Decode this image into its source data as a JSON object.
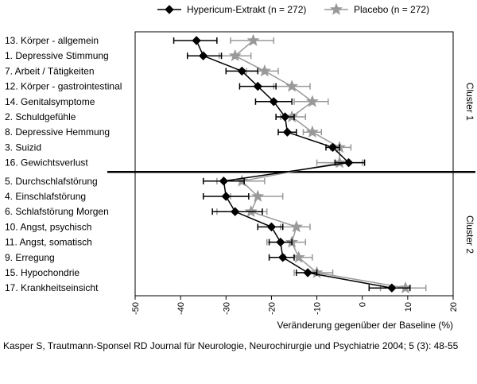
{
  "chart_data": {
    "type": "line",
    "orientation": "horizontal",
    "xlabel": "Veränderung gegenüber der Baseline (%)",
    "xlim": [
      -50,
      20
    ],
    "xticks": [
      -50,
      -40,
      -30,
      -20,
      -10,
      0,
      10,
      20
    ],
    "categories": [
      "13. Körper - allgemein",
      "1. Depressive Stimmung",
      "7. Arbeit / Tätigkeiten",
      "12. Körper - gastrointestinal",
      "14. Genitalsymptome",
      "2. Schuldgefühle",
      "8. Depressive Hemmung",
      "3. Suizid",
      "16. Gewichtsverlust",
      "5. Durchschlafstörung",
      "4. Einschlafstörung",
      "6. Schlafstörung Morgen",
      "10. Angst, psychisch",
      "11. Angst, somatisch",
      "9. Erregung",
      "15. Hypochondrie",
      "17. Krankheitseinsicht"
    ],
    "series": [
      {
        "name": "Hypericum-Extrakt (n = 272)",
        "color": "#000000",
        "marker": "diamond",
        "values": [
          -36.5,
          -35,
          -26.5,
          -23,
          -19.5,
          -17,
          -16.5,
          -6.5,
          -3,
          -30.5,
          -30,
          -28,
          -20,
          -18,
          -17.5,
          -12,
          6.5
        ],
        "err_low": [
          -41.5,
          -38.5,
          -30,
          -27,
          -23.5,
          -19,
          -18.5,
          -8,
          -6,
          -35,
          -35,
          -33,
          -23,
          -20.5,
          -20.5,
          -14.5,
          1.5
        ],
        "err_high": [
          -32,
          -31,
          -23,
          -19,
          -15.5,
          -15,
          -14.5,
          -5,
          0.5,
          -26,
          -25,
          -22,
          -17.5,
          -15.5,
          -15,
          -10,
          10.5
        ]
      },
      {
        "name": "Placebo (n = 272)",
        "color": "#999999",
        "marker": "star",
        "values": [
          -24,
          -28,
          -21.5,
          -15.5,
          -11,
          -15.5,
          -11,
          -5,
          -5,
          -26.5,
          -23,
          -24.5,
          -14.5,
          -15.5,
          -14,
          -10,
          9.5
        ],
        "err_low": [
          -29,
          -31.5,
          -25.5,
          -19.5,
          -15,
          -18,
          -13,
          -7,
          -10,
          -32,
          -29,
          -32,
          -18,
          -21,
          -17,
          -15,
          4
        ],
        "err_high": [
          -19.5,
          -24.5,
          -18.5,
          -11.5,
          -7.5,
          -12.5,
          -9,
          -2.5,
          0,
          -21.5,
          -17.5,
          -21,
          -11.5,
          -12.5,
          -11,
          -6.5,
          14
        ]
      }
    ],
    "clusters": [
      {
        "label": "Cluster 1",
        "from": 0,
        "to": 8
      },
      {
        "label": "Cluster 2",
        "from": 9,
        "to": 16
      }
    ],
    "legend_position": "top",
    "grid": false
  },
  "citation": "Kasper S, Trautmann-Sponsel RD Journal für Neurologie, Neurochirurgie und Psychiatrie 2004; 5 (3): 48-55"
}
